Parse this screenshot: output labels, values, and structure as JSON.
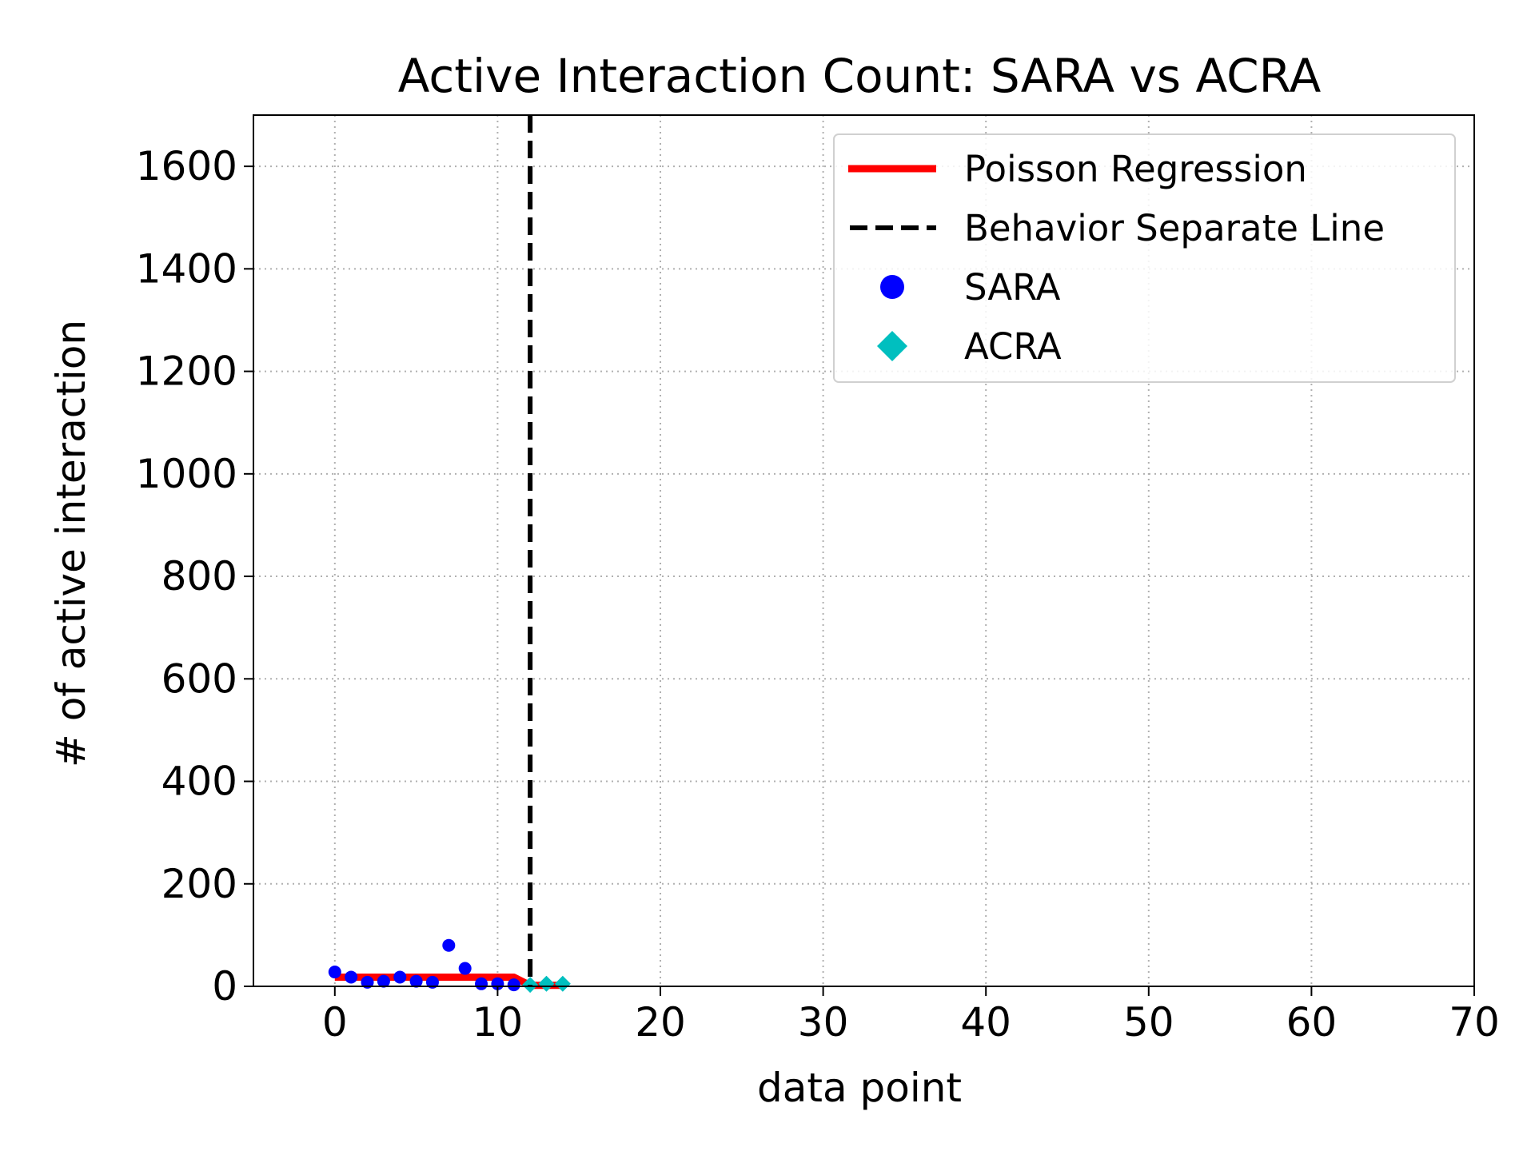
{
  "chart_data": {
    "type": "scatter",
    "title": "Active Interaction Count: SARA vs ACRA",
    "xlabel": "data point",
    "ylabel": "# of active interaction",
    "xlim": [
      -5,
      70
    ],
    "ylim": [
      0,
      1700
    ],
    "x_ticks": [
      0,
      10,
      20,
      30,
      40,
      50,
      60,
      70
    ],
    "y_ticks": [
      0,
      200,
      400,
      600,
      800,
      1000,
      1200,
      1400,
      1600
    ],
    "grid": true,
    "legend_position": "top-right",
    "colors": {
      "regression": "#ff0000",
      "separator": "#000000",
      "sara": "#0000ff",
      "acra": "#00bfbf",
      "grid": "#b0b0b0"
    },
    "legend": [
      {
        "label": "Poisson Regression",
        "marker": "line-solid",
        "color": "#ff0000"
      },
      {
        "label": "Behavior Separate Line",
        "marker": "line-dashed",
        "color": "#000000"
      },
      {
        "label": "SARA",
        "marker": "circle",
        "color": "#0000ff"
      },
      {
        "label": "ACRA",
        "marker": "diamond",
        "color": "#00bfbf"
      }
    ],
    "series": [
      {
        "name": "SARA",
        "marker": "circle",
        "points": [
          [
            0,
            28
          ],
          [
            1,
            18
          ],
          [
            2,
            8
          ],
          [
            3,
            10
          ],
          [
            4,
            18
          ],
          [
            5,
            10
          ],
          [
            6,
            8
          ],
          [
            7,
            80
          ],
          [
            8,
            35
          ],
          [
            9,
            5
          ],
          [
            10,
            5
          ],
          [
            11,
            3
          ]
        ]
      },
      {
        "name": "ACRA",
        "marker": "diamond",
        "points": [
          [
            12,
            3
          ],
          [
            13,
            5
          ],
          [
            14,
            5
          ]
        ]
      },
      {
        "name": "Poisson Regression",
        "marker": "line",
        "points": [
          [
            0,
            18
          ],
          [
            11,
            18
          ],
          [
            12,
            2
          ],
          [
            14,
            2
          ]
        ]
      }
    ],
    "separator_x": 12
  }
}
